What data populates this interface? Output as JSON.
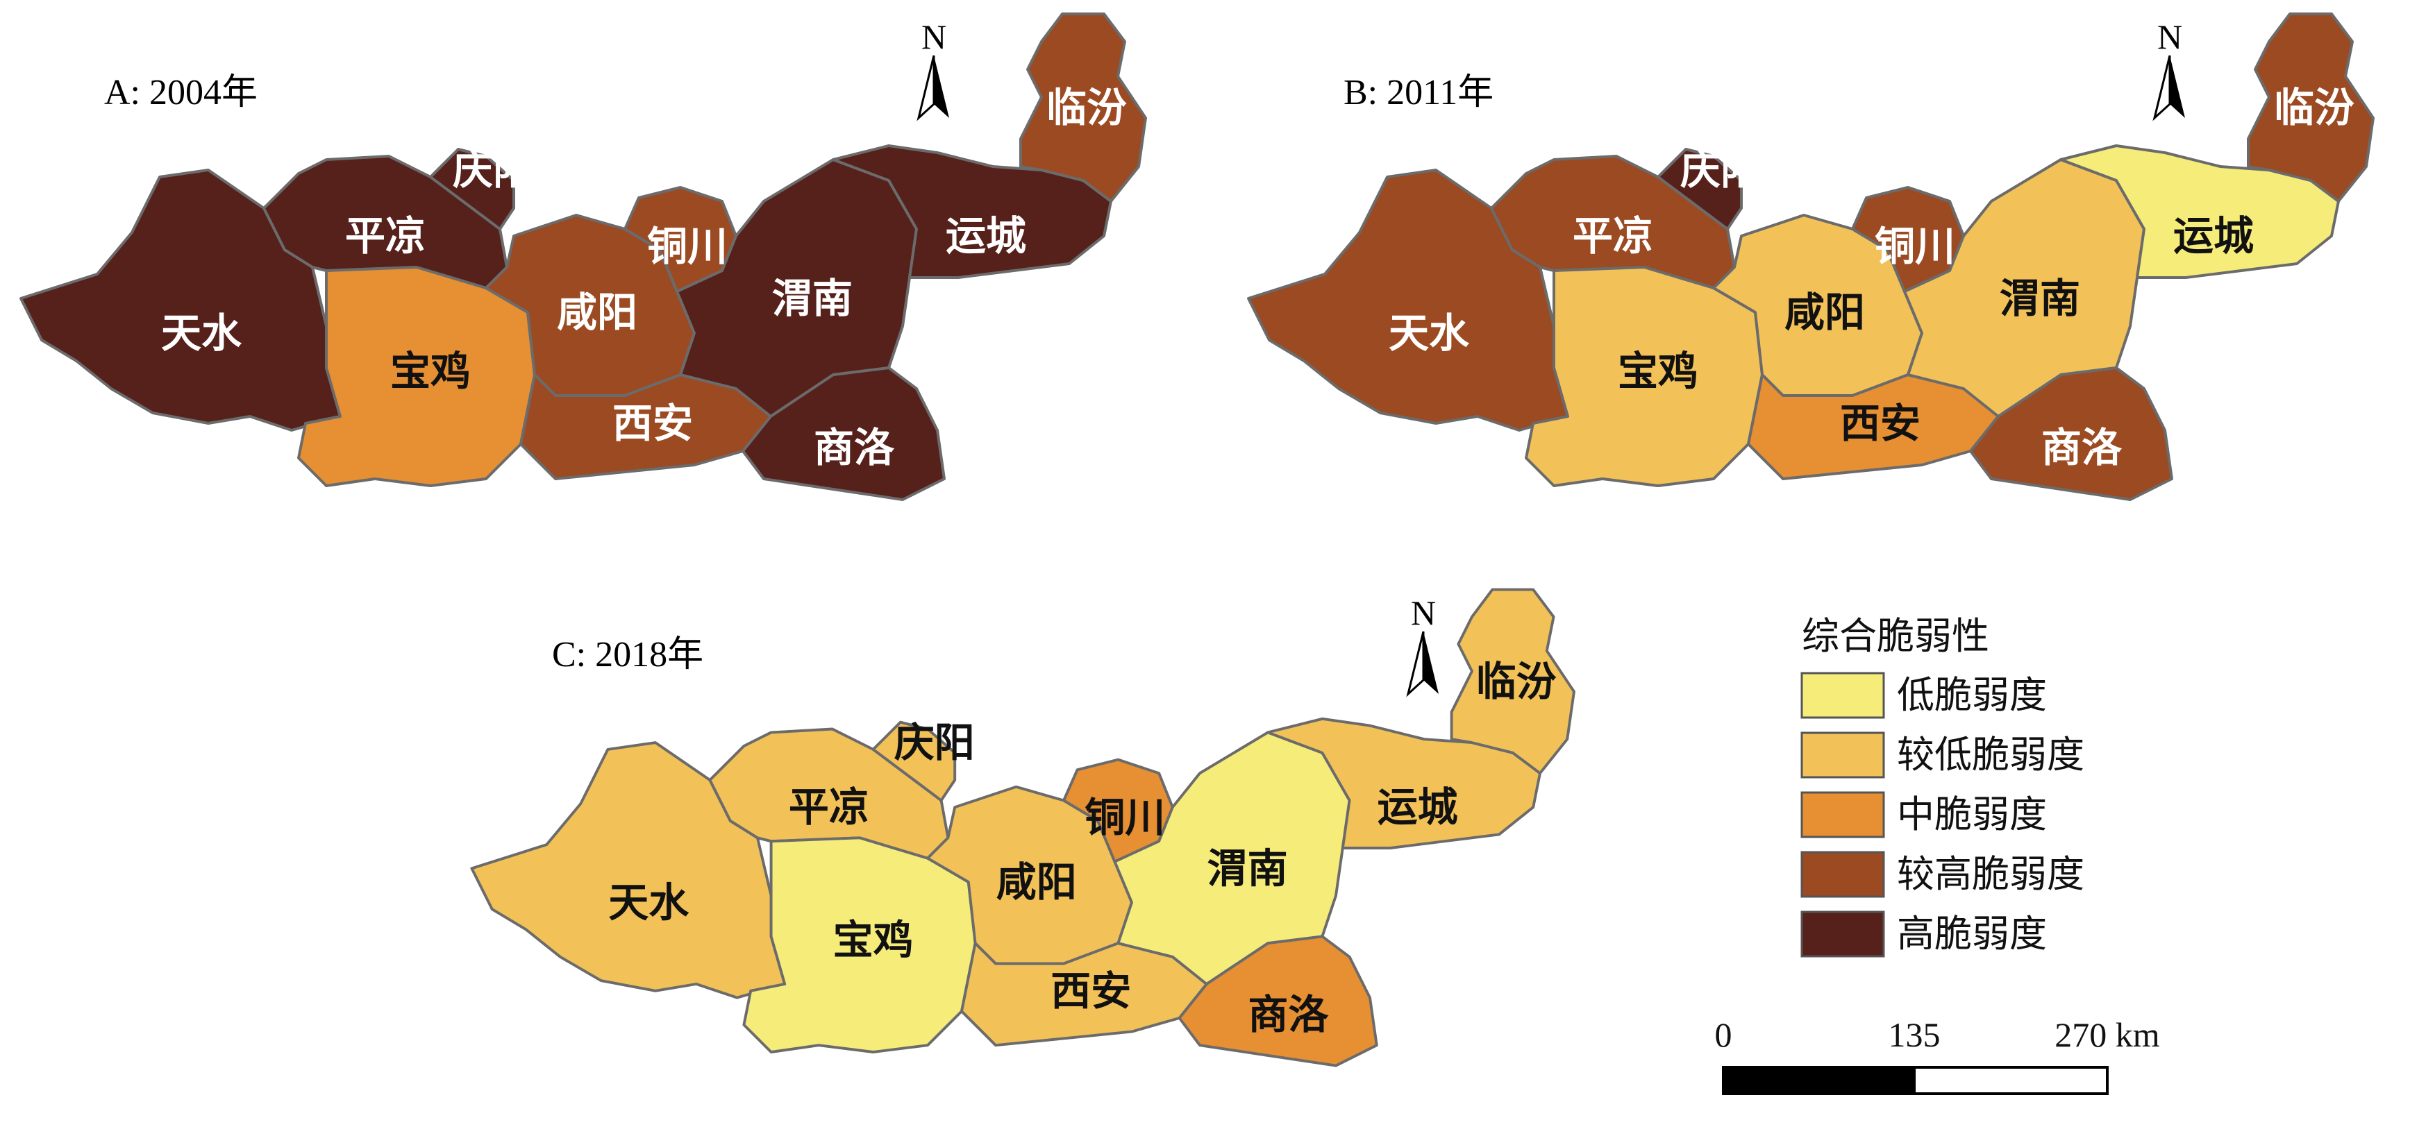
{
  "panels": [
    {
      "title": "A: 2004年",
      "classes": {
        "天水": 5,
        "平凉": 5,
        "庆阳": 5,
        "宝鸡": 3,
        "咸阳": 4,
        "铜川": 4,
        "西安": 4,
        "渭南": 5,
        "商洛": 5,
        "运城": 5,
        "临汾": 4
      }
    },
    {
      "title": "B: 2011年",
      "classes": {
        "天水": 4,
        "平凉": 4,
        "庆阳": 5,
        "宝鸡": 2,
        "咸阳": 2,
        "铜川": 4,
        "西安": 3,
        "渭南": 2,
        "商洛": 4,
        "运城": 1,
        "临汾": 4
      }
    },
    {
      "title": "C: 2018年",
      "classes": {
        "天水": 2,
        "平凉": 2,
        "庆阳": 2,
        "宝鸡": 1,
        "咸阳": 2,
        "铜川": 3,
        "西安": 2,
        "渭南": 1,
        "商洛": 3,
        "运城": 2,
        "临汾": 2
      }
    }
  ],
  "city_names": [
    "天水",
    "平凉",
    "庆阳",
    "宝鸡",
    "咸阳",
    "铜川",
    "西安",
    "渭南",
    "商洛",
    "运城",
    "临汾"
  ],
  "north_label": "N",
  "legend": {
    "title": "综合脆弱性",
    "items": [
      {
        "label": "低脆弱度",
        "color": "#f6ec7a"
      },
      {
        "label": "较低脆弱度",
        "color": "#f2c158"
      },
      {
        "label": "中脆弱度",
        "color": "#e68f33"
      },
      {
        "label": "较高脆弱度",
        "color": "#9c4a22"
      },
      {
        "label": "高脆弱度",
        "color": "#56201b"
      }
    ]
  },
  "scale_bar": {
    "labels": [
      "0",
      "135",
      "270 km"
    ]
  }
}
